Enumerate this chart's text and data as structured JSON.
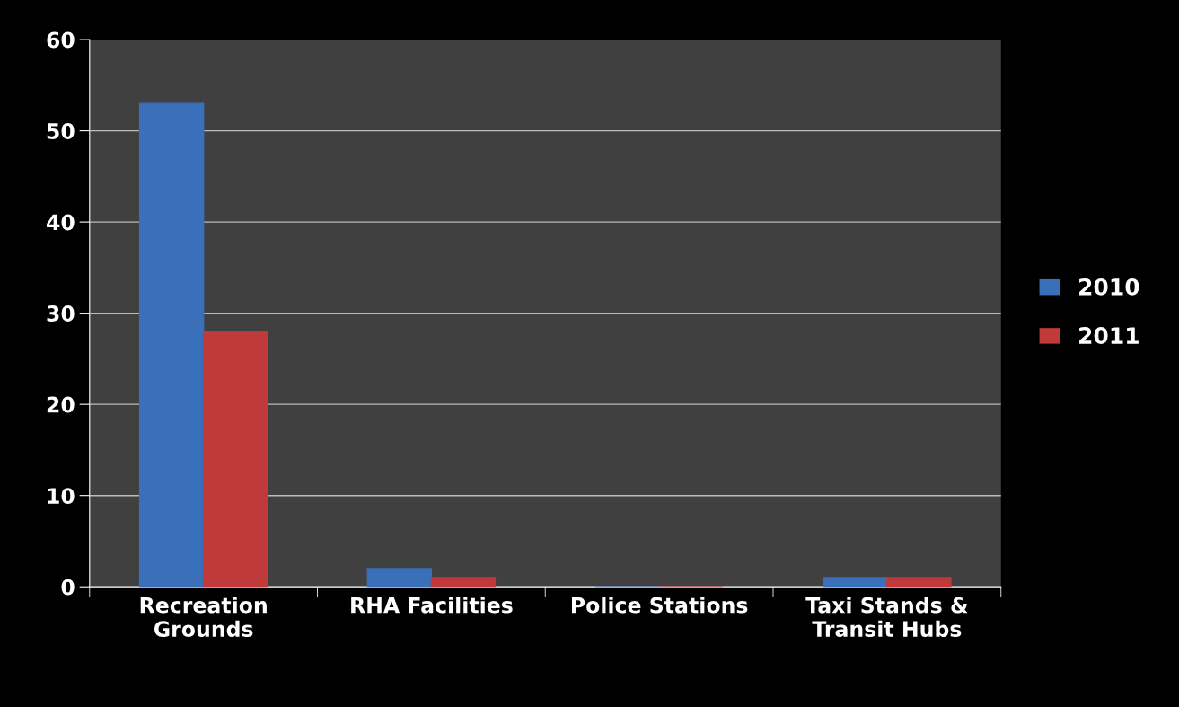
{
  "chart_data": {
    "type": "bar",
    "categories": [
      "Recreation\nGrounds",
      "RHA Facilities",
      "Police Stations",
      "Taxi Stands &\nTransit Hubs"
    ],
    "series": [
      {
        "name": "2010",
        "color": "#3a6fba",
        "values": [
          53,
          2,
          0,
          1
        ]
      },
      {
        "name": "2011",
        "color": "#c0393b",
        "values": [
          28,
          1,
          0,
          1
        ]
      }
    ],
    "ylim": [
      0,
      60
    ],
    "yticks": [
      0,
      10,
      20,
      30,
      40,
      50,
      60
    ],
    "grid": "y",
    "legend": "right"
  }
}
